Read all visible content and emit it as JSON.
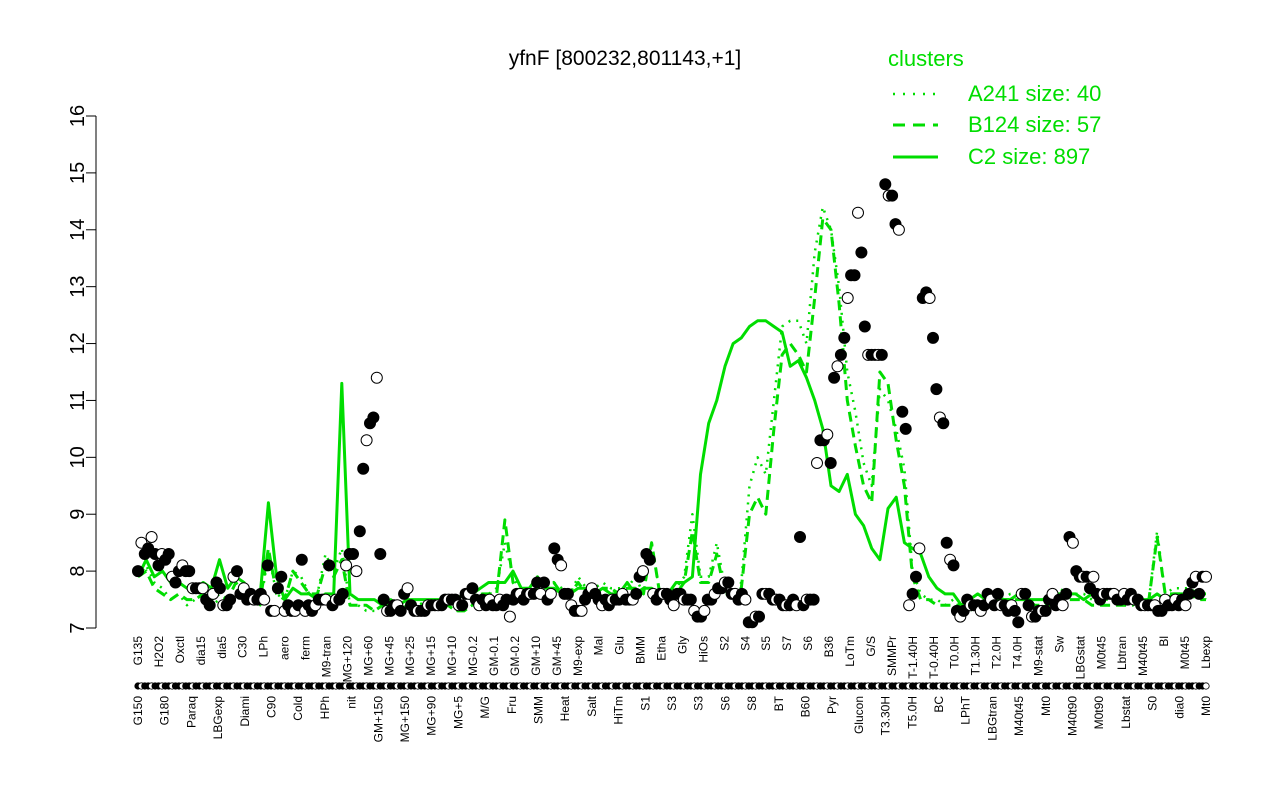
{
  "chart_data": {
    "type": "line",
    "title": "yfnF [800232,801143,+1]",
    "xlabel": "",
    "ylabel": "",
    "ylim": [
      7,
      16
    ],
    "yticks": [
      7,
      8,
      9,
      10,
      11,
      12,
      13,
      14,
      15,
      16
    ],
    "grid": false,
    "legend": {
      "title": "clusters",
      "placement": "top-right",
      "color": "#00dd00",
      "entries": [
        {
          "label": "A241 size: 40",
          "style": "dotted"
        },
        {
          "label": "B124 size: 57",
          "style": "dashed"
        },
        {
          "label": "C2 size: 897",
          "style": "solid"
        }
      ]
    },
    "xtick_labels_upper": [
      "G135",
      "H2O2",
      "Oxctl",
      "dia15",
      "dia5",
      "C30",
      "LPh",
      "aero",
      "ferm",
      "M9-tran",
      "MG+120",
      "MG+60",
      "MG+45",
      "MG+25",
      "MG+15",
      "MG+10",
      "MG-0.2",
      "GM-0.1",
      "GM-0.2",
      "GM+10",
      "GM+45",
      "M9-exp",
      "Mal",
      "Glu",
      "BMM",
      "Etha",
      "Gly",
      "HiOs",
      "S2",
      "S4",
      "S5",
      "S7",
      "S6",
      "B36",
      "LoTm",
      "G/S",
      "SMMPr",
      "T-1.40H",
      "T-0.40H",
      "T0.0H",
      "T1.30H",
      "T2.0H",
      "T4.0H",
      "M9-stat",
      "Sw",
      "LBGstat",
      "M0t45",
      "Lbtran",
      "M40t45",
      "Bl",
      "M0t45",
      "Lbexp"
    ],
    "xtick_labels_lower": [
      "G150",
      "G180",
      "Paraq",
      "LBGexp",
      "Diami",
      "C90",
      "Cold",
      "HPh",
      "nit",
      "GM+150",
      "MG+150",
      "MG+90",
      "MG+5",
      "M/G",
      "Fru",
      "SMM",
      "Heat",
      "Salt",
      "HiTm",
      "S1",
      "S3",
      "S3",
      "S6",
      "S8",
      "BT",
      "B60",
      "Pyr",
      "Glucon",
      "T3.30H",
      "T5.0H",
      "BC",
      "LPhT",
      "LBGtran",
      "M40t45",
      "Mt0",
      "M40t90",
      "M0t90",
      "Lbstat",
      "S0",
      "dia0",
      "Mt0"
    ],
    "series": [
      {
        "name": "A241 size: 40",
        "style": "dotted",
        "color": "#00dd00",
        "y": [
          7.9,
          8.1,
          7.8,
          7.7,
          7.5,
          7.6,
          7.4,
          7.5,
          7.6,
          7.4,
          7.5,
          7.5,
          7.8,
          7.6,
          7.5,
          7.4,
          8.3,
          7.6,
          7.5,
          8.0,
          7.9,
          7.6,
          7.6,
          8.3,
          8.0,
          8.4,
          7.4,
          7.4,
          7.3,
          7.3,
          7.4,
          7.4,
          7.3,
          7.4,
          7.5,
          7.4,
          7.5,
          7.3,
          7.4,
          7.3,
          7.3,
          7.4,
          7.6,
          7.6,
          7.7,
          8.5,
          7.9,
          7.6,
          7.7,
          7.7,
          7.6,
          7.8,
          7.7,
          7.6,
          7.9,
          7.7,
          7.7,
          7.8,
          7.7,
          7.7,
          7.7,
          7.9,
          7.6,
          8.5,
          7.6,
          7.6,
          7.7,
          7.9,
          9.0,
          7.9,
          7.9,
          8.5,
          7.7,
          7.6,
          7.8,
          9.5,
          10.0,
          9.7,
          11.0,
          12.3,
          12.4,
          12.4,
          12.0,
          13.6,
          14.4,
          14.0,
          13.0,
          11.5,
          10.8,
          9.9,
          9.5,
          11.2,
          11.0,
          10.5,
          9.8,
          8.0,
          7.6,
          7.5,
          7.5,
          7.4,
          7.5,
          7.4,
          7.3,
          7.5,
          7.4,
          7.5,
          7.5,
          7.6,
          7.6,
          7.5,
          7.4,
          7.4,
          7.5,
          7.7,
          7.6,
          7.6,
          7.6,
          7.5,
          7.5,
          7.5,
          7.5,
          7.4,
          7.5,
          7.5,
          7.5,
          8.7,
          7.6,
          7.7,
          7.7,
          7.7,
          7.6,
          7.5
        ]
      },
      {
        "name": "B124 size: 57",
        "style": "dashed",
        "color": "#00dd00",
        "y": [
          7.9,
          8.0,
          7.7,
          7.6,
          7.5,
          7.6,
          7.5,
          7.5,
          7.6,
          7.5,
          7.6,
          7.5,
          7.8,
          7.6,
          7.5,
          7.5,
          8.4,
          7.6,
          7.5,
          8.0,
          7.8,
          7.6,
          7.6,
          8.1,
          7.9,
          8.2,
          7.4,
          7.4,
          7.4,
          7.3,
          7.4,
          7.4,
          7.3,
          7.4,
          7.4,
          7.4,
          7.5,
          7.3,
          7.4,
          7.3,
          7.3,
          7.4,
          7.6,
          7.6,
          7.6,
          8.9,
          7.8,
          7.6,
          7.6,
          7.7,
          7.6,
          7.8,
          7.6,
          7.6,
          7.8,
          7.6,
          7.6,
          7.7,
          7.7,
          7.6,
          7.7,
          7.7,
          7.6,
          8.5,
          7.6,
          7.6,
          7.6,
          7.8,
          8.7,
          7.8,
          7.8,
          8.3,
          7.6,
          7.6,
          7.7,
          9.0,
          9.3,
          9.0,
          10.5,
          11.8,
          12.0,
          11.8,
          11.5,
          12.8,
          14.2,
          14.0,
          12.7,
          11.0,
          10.2,
          9.5,
          9.2,
          11.5,
          11.3,
          10.3,
          9.5,
          7.9,
          7.5,
          7.5,
          7.4,
          7.4,
          7.4,
          7.4,
          7.3,
          7.4,
          7.4,
          7.4,
          7.5,
          7.5,
          7.5,
          7.5,
          7.4,
          7.4,
          7.4,
          7.6,
          7.5,
          7.5,
          7.5,
          7.4,
          7.4,
          7.4,
          7.4,
          7.4,
          7.4,
          7.5,
          7.5,
          8.6,
          7.6,
          7.6,
          7.6,
          7.6,
          7.5,
          7.5
        ]
      },
      {
        "name": "C2 size: 897",
        "style": "solid",
        "color": "#00dd00",
        "y": [
          7.9,
          8.2,
          7.9,
          8.0,
          7.8,
          7.8,
          7.7,
          7.7,
          7.8,
          7.7,
          8.2,
          7.7,
          7.9,
          7.8,
          7.6,
          7.6,
          9.2,
          7.9,
          7.5,
          7.7,
          7.6,
          7.6,
          7.5,
          7.6,
          7.6,
          11.3,
          7.6,
          7.5,
          7.5,
          7.5,
          7.4,
          7.5,
          7.4,
          7.5,
          7.5,
          7.5,
          7.5,
          7.5,
          7.5,
          7.5,
          7.6,
          7.6,
          7.7,
          7.8,
          7.8,
          7.8,
          8.0,
          7.7,
          7.7,
          7.9,
          7.7,
          7.7,
          7.6,
          7.6,
          7.7,
          7.7,
          7.6,
          7.7,
          7.6,
          7.6,
          7.8,
          7.6,
          7.7,
          7.7,
          7.6,
          7.6,
          7.8,
          7.8,
          7.9,
          9.7,
          10.6,
          11.0,
          11.6,
          12.0,
          12.1,
          12.3,
          12.4,
          12.4,
          12.3,
          12.2,
          11.6,
          11.7,
          11.4,
          11.0,
          10.5,
          9.5,
          9.4,
          9.7,
          9.0,
          8.8,
          8.4,
          8.2,
          9.1,
          9.3,
          8.5,
          8.4,
          8.3,
          7.9,
          7.7,
          7.6,
          7.6,
          7.4,
          7.5,
          7.6,
          7.5,
          7.5,
          7.5,
          7.5,
          7.6,
          7.5,
          7.5,
          7.5,
          7.6,
          7.6,
          7.6,
          7.6,
          7.5,
          7.6,
          7.5,
          7.6,
          7.5,
          7.5,
          7.5,
          7.5,
          7.5,
          7.6,
          7.5,
          7.6,
          7.6,
          7.6,
          7.6,
          7.6
        ]
      },
      {
        "name": "",
        "style": "points",
        "y": [
          8.0,
          8.5,
          8.3,
          8.4,
          8.6,
          8.3,
          8.1,
          8.3,
          8.2,
          8.3,
          7.9,
          7.8,
          8.0,
          8.1,
          8.0,
          8.0,
          7.7,
          7.7,
          7.7,
          7.7,
          7.5,
          7.4,
          7.6,
          7.8,
          7.7,
          7.4,
          7.4,
          7.5,
          7.9,
          8.0,
          7.6,
          7.7,
          7.5,
          7.6,
          7.5,
          7.5,
          7.6,
          7.5,
          8.1,
          7.3,
          7.3,
          7.7,
          7.9,
          7.3,
          7.4,
          7.3,
          7.3,
          7.4,
          8.2,
          7.3,
          7.4,
          7.3,
          7.4,
          7.5,
          7.5,
          7.5,
          8.1,
          7.4,
          7.5,
          7.5,
          7.6,
          8.1,
          8.3,
          8.3,
          8.0,
          8.7,
          9.8,
          10.3,
          10.6,
          10.7,
          11.4,
          8.3,
          7.5,
          7.3,
          7.3,
          7.4,
          7.4,
          7.3,
          7.6,
          7.7,
          7.4,
          7.3,
          7.3,
          7.3,
          7.3,
          7.4,
          7.4,
          7.4,
          7.4,
          7.4,
          7.5,
          7.5,
          7.5,
          7.5,
          7.4,
          7.4,
          7.6,
          7.6,
          7.7,
          7.5,
          7.4,
          7.5,
          7.4,
          7.5,
          7.4,
          7.4,
          7.5,
          7.4,
          7.5,
          7.2,
          7.5,
          7.6,
          7.6,
          7.5,
          7.6,
          7.6,
          7.6,
          7.8,
          7.6,
          7.8,
          7.5,
          7.6,
          8.4,
          8.2,
          8.1,
          7.6,
          7.6,
          7.4,
          7.3,
          7.3,
          7.3,
          7.5,
          7.6,
          7.7,
          7.6,
          7.5,
          7.4,
          7.5,
          7.4,
          7.5,
          7.5,
          7.5,
          7.6,
          7.5,
          7.5,
          7.5,
          7.6,
          7.9,
          8.0,
          8.3,
          8.2,
          7.6,
          7.5,
          7.6,
          7.6,
          7.6,
          7.5,
          7.4,
          7.6,
          7.6,
          7.5,
          7.5,
          7.5,
          7.3,
          7.2,
          7.2,
          7.3,
          7.5,
          7.5,
          7.6,
          7.7,
          7.7,
          7.8,
          7.8,
          7.6,
          7.6,
          7.5,
          7.6,
          7.5,
          7.1,
          7.1,
          7.2,
          7.2,
          7.6,
          7.6,
          7.6,
          7.5,
          7.5,
          7.5,
          7.4,
          7.4,
          7.4,
          7.5,
          7.4,
          8.6,
          7.4,
          7.5,
          7.5,
          7.5,
          9.9,
          10.3,
          10.3,
          10.4,
          9.9,
          11.4,
          11.6,
          11.8,
          12.1,
          12.8,
          13.2,
          13.2,
          14.3,
          13.6,
          12.3,
          11.8,
          11.8,
          11.8,
          11.8,
          11.8,
          14.8,
          14.6,
          14.6,
          14.1,
          14.0,
          10.8,
          10.5,
          7.4,
          7.6,
          7.9,
          8.4,
          12.8,
          12.9,
          12.8,
          12.1,
          11.2,
          10.7,
          10.6,
          8.5,
          8.2,
          8.1,
          7.3,
          7.2,
          7.3,
          7.5,
          7.4,
          7.4,
          7.4,
          7.3,
          7.4,
          7.6,
          7.5,
          7.4,
          7.6,
          7.4,
          7.4,
          7.3,
          7.4,
          7.3,
          7.1,
          7.6,
          7.6,
          7.4,
          7.2,
          7.2,
          7.3,
          7.3,
          7.3,
          7.5,
          7.6,
          7.4,
          7.5,
          7.4,
          7.6,
          8.6,
          8.5,
          8.0,
          7.9,
          7.9,
          7.9,
          7.7,
          7.9,
          7.6,
          7.5,
          7.6,
          7.6,
          7.6,
          7.6,
          7.5,
          7.5,
          7.6,
          7.5,
          7.6,
          7.5,
          7.5,
          7.4,
          7.4,
          7.4,
          7.4,
          7.4,
          7.3,
          7.3,
          7.5,
          7.4,
          7.4,
          7.5,
          7.4,
          7.5,
          7.4,
          7.6,
          7.8,
          7.9,
          7.6,
          7.9,
          7.9
        ]
      }
    ]
  }
}
